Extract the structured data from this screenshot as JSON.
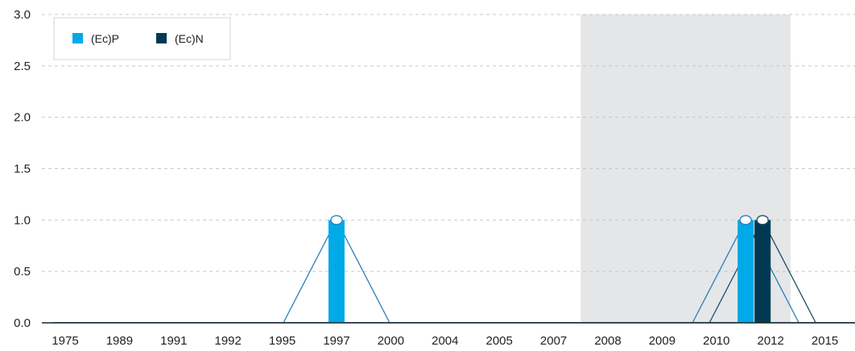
{
  "chart_data": {
    "type": "bar",
    "title": "",
    "xlabel": "",
    "ylabel": "",
    "categories": [
      "1975",
      "1989",
      "1991",
      "1992",
      "1995",
      "1997",
      "2000",
      "2004",
      "2005",
      "2007",
      "2008",
      "2009",
      "2010",
      "2012",
      "2015"
    ],
    "series": [
      {
        "name": "(Ec)P",
        "color": "#00a9e8",
        "values": [
          0,
          0,
          0,
          0,
          0,
          1,
          0,
          0,
          0,
          0,
          0,
          0,
          0,
          1,
          0
        ]
      },
      {
        "name": "(Ec)N",
        "color": "#003a52",
        "values": [
          0,
          0,
          0,
          0,
          0,
          0,
          0,
          0,
          0,
          0,
          0,
          0,
          0,
          1,
          0
        ]
      }
    ],
    "yticks": [
      "0.0",
      "0.5",
      "1.0",
      "1.5",
      "2.0",
      "2.5",
      "3.0"
    ],
    "ylim": [
      0,
      3
    ],
    "highlight_range": [
      "2008",
      "2012"
    ],
    "highlight_color": "#e4e6e8",
    "line_color": "#2a7fba",
    "grid": true,
    "legend_position": "top-left"
  }
}
